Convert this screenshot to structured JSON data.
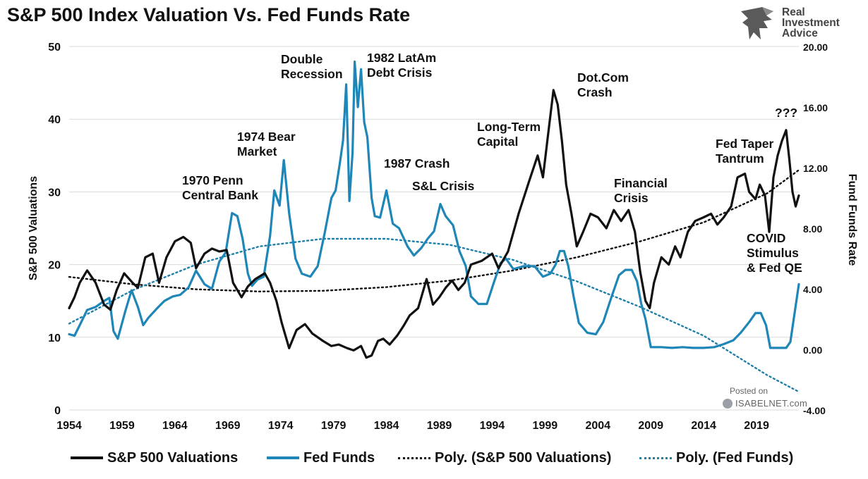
{
  "title": "S&P 500 Index Valuation Vs. Fed Funds Rate",
  "logo": {
    "line1": "Real",
    "line2": "Investment",
    "line3": "Advice",
    "icon": "eagle-head-icon"
  },
  "watermark": {
    "posted": "Posted on",
    "site": "ISABELNET.com",
    "icon": "globe-icon"
  },
  "colors": {
    "spx": "#111111",
    "fed": "#1f86b8",
    "poly_spx": "#111111",
    "poly_fed": "#1f7fa8",
    "grid": "#d9d9d9"
  },
  "chart_data": {
    "type": "line",
    "title": "S&P 500 Index Valuation Vs. Fed Funds Rate",
    "xlabel": "",
    "ylabel": "S&P 500 Valuations",
    "y2label": "Fund Funds Rate",
    "xlim": [
      1954,
      2023
    ],
    "ylim": [
      0,
      50
    ],
    "y2lim": [
      -4,
      20
    ],
    "x_ticks": [
      "1954",
      "1959",
      "1964",
      "1969",
      "1974",
      "1979",
      "1984",
      "1989",
      "1994",
      "1999",
      "2004",
      "2009",
      "2014",
      "2019"
    ],
    "y_ticks": [
      "0",
      "10",
      "20",
      "30",
      "40",
      "50"
    ],
    "y2_ticks": [
      "-4.00",
      "0.00",
      "4.00",
      "8.00",
      "12.00",
      "16.00",
      "20.00"
    ],
    "grid": "horizontal",
    "legend_position": "bottom",
    "series": [
      {
        "name": "S&P 500 Valuations",
        "axis": "left",
        "style": "solid",
        "x": [
          1954,
          1954.5,
          1955,
          1955.7,
          1956.5,
          1957.3,
          1957.9,
          1958.5,
          1959.2,
          1960,
          1960.5,
          1961.2,
          1961.9,
          1962.5,
          1963.2,
          1964,
          1964.8,
          1965.5,
          1966,
          1966.8,
          1967.5,
          1968.2,
          1968.9,
          1969.5,
          1970.3,
          1970.9,
          1971.6,
          1972.5,
          1973,
          1973.6,
          1974.1,
          1974.8,
          1975.5,
          1976.3,
          1977,
          1978,
          1978.8,
          1979.5,
          1980.3,
          1980.9,
          1981.6,
          1982.1,
          1982.6,
          1983.2,
          1983.7,
          1984.3,
          1985,
          1985.6,
          1986.2,
          1987,
          1987.4,
          1987.8,
          1988.4,
          1989,
          1989.6,
          1990.2,
          1990.8,
          1991.4,
          1992,
          1993,
          1994,
          1994.6,
          1995.5,
          1996.5,
          1997.5,
          1998.3,
          1998.8,
          1999.3,
          1999.8,
          2000.2,
          2000.6,
          2001,
          2001.5,
          2002,
          2002.6,
          2003.3,
          2004,
          2004.8,
          2005.5,
          2006.2,
          2006.9,
          2007.5,
          2008,
          2008.5,
          2008.9,
          2009.3,
          2010,
          2010.7,
          2011.3,
          2011.8,
          2012.5,
          2013.2,
          2014,
          2014.7,
          2015.3,
          2015.9,
          2016.6,
          2017.2,
          2017.9,
          2018.3,
          2018.9,
          2019.3,
          2019.8,
          2020.2,
          2020.6,
          2021,
          2021.4,
          2021.8,
          2022.1,
          2022.4,
          2022.7,
          2023
        ],
        "values": [
          14,
          15.5,
          17.5,
          19.2,
          17.5,
          14.5,
          13.8,
          16.5,
          18.8,
          17.5,
          16.8,
          21,
          21.5,
          17.5,
          21,
          23.2,
          23.8,
          23,
          19.5,
          21.5,
          22.2,
          21.8,
          22,
          17.5,
          15.5,
          17,
          18,
          18.8,
          17.5,
          15,
          12,
          8.5,
          11,
          11.8,
          10.5,
          9.5,
          8.8,
          9,
          8.5,
          8.2,
          8.8,
          7.2,
          7.5,
          9.5,
          9.8,
          9,
          10.2,
          11.5,
          13,
          14,
          16,
          18,
          14.5,
          15.5,
          16.8,
          17.8,
          16.5,
          17.5,
          20,
          20.5,
          21.5,
          19.5,
          21.8,
          27,
          31.5,
          35,
          32,
          38,
          44,
          42,
          37,
          31,
          27,
          22.5,
          24.5,
          27,
          26.5,
          25,
          27.5,
          26,
          27.5,
          24.5,
          19,
          15,
          14,
          17.5,
          21,
          20,
          22.5,
          21,
          24.5,
          26,
          26.5,
          27,
          25.5,
          26.5,
          28,
          32,
          32.5,
          30,
          29,
          31,
          29.5,
          24.5,
          32,
          35,
          37,
          38.5,
          34.5,
          30,
          28,
          29.5
        ]
      },
      {
        "name": "Fed Funds",
        "axis": "right",
        "style": "solid",
        "x": [
          1954,
          1954.5,
          1955,
          1955.7,
          1956.5,
          1957.3,
          1957.8,
          1958.2,
          1958.6,
          1959.3,
          1959.9,
          1960.5,
          1961,
          1961.5,
          1962.3,
          1963,
          1963.8,
          1964.5,
          1965.3,
          1966,
          1966.8,
          1967.5,
          1968.2,
          1968.8,
          1969.4,
          1969.9,
          1970.4,
          1970.9,
          1971.3,
          1971.8,
          1972.4,
          1973,
          1973.4,
          1973.9,
          1974.3,
          1974.8,
          1975.4,
          1976,
          1976.8,
          1977.5,
          1978.2,
          1978.8,
          1979.2,
          1979.6,
          1979.9,
          1980.2,
          1980.5,
          1980.8,
          1981,
          1981.3,
          1981.6,
          1981.9,
          1982.2,
          1982.6,
          1982.9,
          1983.4,
          1984,
          1984.6,
          1985.2,
          1986,
          1986.6,
          1987.3,
          1987.9,
          1988.5,
          1989.1,
          1989.6,
          1990.3,
          1990.9,
          1991.5,
          1992,
          1992.7,
          1993.5,
          1994.2,
          1994.8,
          1995.3,
          1996,
          1997,
          1998,
          1998.8,
          1999.5,
          2000,
          2000.4,
          2000.8,
          2001.2,
          2001.7,
          2002.2,
          2003,
          2003.8,
          2004.5,
          2005.3,
          2006,
          2006.6,
          2007.2,
          2007.7,
          2008.1,
          2008.5,
          2009,
          2010,
          2011,
          2012,
          2013,
          2014,
          2015,
          2015.9,
          2016.8,
          2017.5,
          2018.3,
          2018.9,
          2019.4,
          2019.9,
          2020.3,
          2021,
          2021.8,
          2022.2,
          2022.6,
          2023
        ],
        "values": [
          1,
          0.9,
          1.6,
          2.6,
          2.8,
          3.2,
          3.4,
          1.2,
          0.7,
          2.5,
          3.9,
          2.8,
          1.6,
          2.1,
          2.7,
          3.2,
          3.5,
          3.6,
          4.1,
          5.2,
          4.3,
          4,
          5.8,
          6.4,
          9,
          8.8,
          7.3,
          5,
          4.2,
          4.6,
          4.8,
          7.5,
          10.5,
          9.5,
          12.5,
          9,
          6,
          5,
          4.8,
          5.5,
          7.8,
          10,
          10.5,
          12.3,
          13.8,
          17.5,
          9.8,
          13,
          19,
          16,
          18.5,
          15,
          14,
          10,
          8.8,
          8.7,
          10.5,
          8.3,
          8,
          6.8,
          6.2,
          6.7,
          7.3,
          7.8,
          9.6,
          8.8,
          8.2,
          6.5,
          5.5,
          3.5,
          3,
          3,
          4.5,
          5.7,
          6,
          5.3,
          5.5,
          5.5,
          4.8,
          5,
          5.6,
          6.5,
          6.5,
          5.5,
          3.5,
          1.75,
          1.1,
          1,
          1.8,
          3.5,
          4.9,
          5.25,
          5.25,
          4.5,
          3,
          2,
          0.15,
          0.15,
          0.1,
          0.15,
          0.1,
          0.1,
          0.15,
          0.35,
          0.6,
          1.1,
          1.8,
          2.4,
          2.4,
          1.6,
          0.1,
          0.1,
          0.1,
          0.5,
          2.4,
          4.3
        ]
      },
      {
        "name": "Poly. (S&P 500 Valuations)",
        "axis": "left",
        "style": "dotted",
        "x": [
          1954,
          1960,
          1966,
          1972,
          1978,
          1984,
          1990,
          1996,
          2002,
          2008,
          2014,
          2020,
          2023
        ],
        "values": [
          18.3,
          17.3,
          16.6,
          16.3,
          16.4,
          16.9,
          17.8,
          19.2,
          21,
          23.2,
          25.8,
          29.8,
          33
        ]
      },
      {
        "name": "Poly. (Fed Funds)",
        "axis": "right",
        "style": "dotted",
        "x": [
          1954,
          1960,
          1966,
          1972,
          1978,
          1984,
          1990,
          1996,
          2002,
          2008,
          2014,
          2020,
          2023
        ],
        "values": [
          1.7,
          3.9,
          5.6,
          6.8,
          7.3,
          7.3,
          6.9,
          5.9,
          4.5,
          2.8,
          0.9,
          -1.7,
          -2.8
        ]
      }
    ],
    "annotations": [
      {
        "lines": [
          "1970 Penn",
          "Central Bank"
        ]
      },
      {
        "lines": [
          "1974 Bear",
          "Market"
        ]
      },
      {
        "lines": [
          "Double",
          "Recession"
        ]
      },
      {
        "lines": [
          "1982 LatAm",
          "Debt Crisis"
        ]
      },
      {
        "lines": [
          "1987 Crash"
        ]
      },
      {
        "lines": [
          "S&L Crisis"
        ]
      },
      {
        "lines": [
          "Long-Term",
          "Capital"
        ]
      },
      {
        "lines": [
          "Dot.Com",
          "Crash"
        ]
      },
      {
        "lines": [
          "Financial",
          "Crisis"
        ]
      },
      {
        "lines": [
          "Fed Taper",
          "Tantrum"
        ]
      },
      {
        "lines": [
          "???"
        ]
      },
      {
        "lines": [
          "COVID",
          "Stimulus",
          "& Fed QE"
        ]
      }
    ]
  }
}
